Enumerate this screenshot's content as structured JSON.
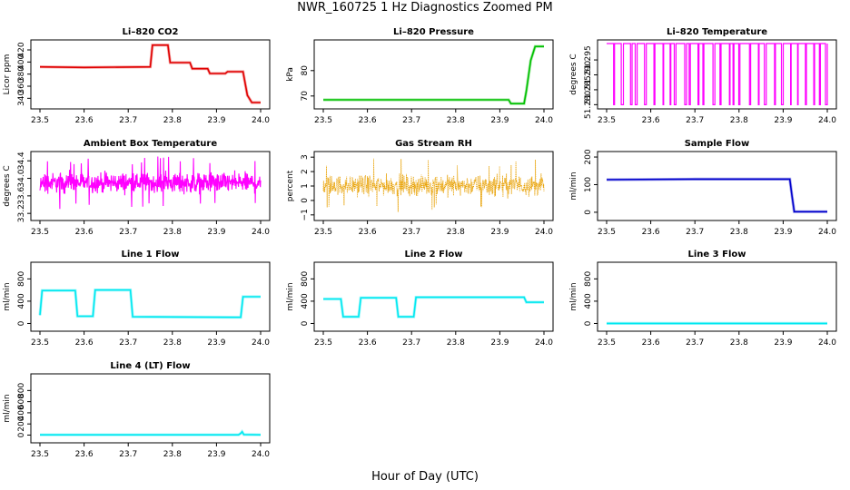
{
  "figure": {
    "title": "NWR_160725  1 Hz Diagnostics Zoomed PM",
    "xlabel": "Hour of Day (UTC)"
  },
  "chart_data": [
    {
      "type": "line",
      "title": "Li–820 CO2",
      "ylabel": "Licor ppm",
      "color": "#e00000",
      "xlim": [
        23.5,
        24.0
      ],
      "ylim": [
        327,
        432
      ],
      "xticks": [
        "23.5",
        "23.6",
        "23.7",
        "23.8",
        "23.9",
        "24.0"
      ],
      "yticks": [
        340,
        360,
        380,
        400,
        420
      ],
      "series": [
        {
          "x": [
            23.5,
            23.6,
            23.75,
            23.755,
            23.79,
            23.795,
            23.84,
            23.845,
            23.88,
            23.885,
            23.92,
            23.925,
            23.96,
            23.97,
            23.98,
            24.0
          ],
          "y": [
            392,
            391,
            392,
            428,
            428,
            399,
            399,
            389,
            389,
            381,
            381,
            384,
            384,
            345,
            333,
            333
          ]
        }
      ]
    },
    {
      "type": "line",
      "title": "Li–820 Pressure",
      "ylabel": "kPa",
      "color": "#00c000",
      "xlim": [
        23.5,
        24.0
      ],
      "ylim": [
        66,
        91
      ],
      "xticks": [
        "23.5",
        "23.6",
        "23.7",
        "23.8",
        "23.9",
        "24.0"
      ],
      "yticks": [
        70,
        80
      ],
      "series": [
        {
          "x": [
            23.5,
            23.92,
            23.925,
            23.955,
            23.96,
            23.97,
            23.98,
            24.0
          ],
          "y": [
            68.5,
            68.5,
            67.0,
            67.0,
            72,
            84,
            89.5,
            89.5
          ]
        }
      ]
    },
    {
      "type": "line",
      "title": "Li–820 Temperature",
      "ylabel": "degrees C",
      "color": "#ff00ff",
      "xlim": [
        23.5,
        24.0
      ],
      "ylim": [
        51.2795,
        51.3008
      ],
      "xticks": [
        "23.5",
        "23.6",
        "23.7",
        "23.8",
        "23.9",
        "24.0"
      ],
      "yticks": [
        "51.280",
        "51.285",
        "51.290",
        "51.295"
      ],
      "levels": [
        51.28,
        51.3005
      ]
    },
    {
      "type": "line",
      "title": "Ambient Box Temperature",
      "ylabel": "degrees C",
      "color": "#ff00ff",
      "xlim": [
        23.5,
        24.0
      ],
      "ylim": [
        33.1,
        34.55
      ],
      "xticks": [
        "23.5",
        "23.6",
        "23.7",
        "23.8",
        "23.9",
        "24.0"
      ],
      "yticks": [
        "33.2",
        "33.6",
        "34.0",
        "34.4"
      ],
      "mean": 33.9,
      "spread": [
        33.15,
        34.5
      ]
    },
    {
      "type": "scatter",
      "title": "Gas Stream RH",
      "ylabel": "percent",
      "color": "#e8a000",
      "xlim": [
        23.5,
        24.0
      ],
      "ylim": [
        -1.2,
        3.2
      ],
      "xticks": [
        "23.5",
        "23.6",
        "23.7",
        "23.8",
        "23.9",
        "24.0"
      ],
      "yticks": [
        "−1",
        "0",
        "1",
        "2",
        "3"
      ],
      "mean": 1.05,
      "spread": [
        -0.9,
        2.9
      ]
    },
    {
      "type": "line",
      "title": "Sample Flow",
      "ylabel": "ml/min",
      "color": "#0000cc",
      "xlim": [
        23.5,
        24.0
      ],
      "ylim": [
        -20,
        210
      ],
      "xticks": [
        "23.5",
        "23.6",
        "23.7",
        "23.8",
        "23.9",
        "24.0"
      ],
      "yticks": [
        0,
        100,
        200
      ],
      "series": [
        {
          "x": [
            23.5,
            23.7,
            23.8,
            23.915,
            23.92,
            23.925,
            24.0
          ],
          "y": [
            118,
            120,
            120,
            120,
            60,
            2,
            2
          ]
        }
      ]
    },
    {
      "type": "line",
      "title": "Line 1 Flow",
      "ylabel": "ml/min",
      "color": "#00e8f0",
      "xlim": [
        23.5,
        24.0
      ],
      "ylim": [
        -90,
        1050
      ],
      "xticks": [
        "23.5",
        "23.6",
        "23.7",
        "23.8",
        "23.9",
        "24.0"
      ],
      "yticks": [
        0,
        400,
        800
      ],
      "series": [
        {
          "x": [
            23.5,
            23.505,
            23.58,
            23.585,
            23.62,
            23.625,
            23.705,
            23.71,
            23.955,
            23.96,
            24.0
          ],
          "y": [
            150,
            590,
            590,
            130,
            130,
            600,
            600,
            120,
            110,
            480,
            480
          ]
        }
      ]
    },
    {
      "type": "line",
      "title": "Line 2 Flow",
      "ylabel": "ml/min",
      "color": "#00e8f0",
      "xlim": [
        23.5,
        24.0
      ],
      "ylim": [
        -90,
        1050
      ],
      "xticks": [
        "23.5",
        "23.6",
        "23.7",
        "23.8",
        "23.9",
        "24.0"
      ],
      "yticks": [
        0,
        400,
        800
      ],
      "series": [
        {
          "x": [
            23.5,
            23.54,
            23.545,
            23.58,
            23.585,
            23.665,
            23.67,
            23.705,
            23.71,
            23.955,
            23.96,
            24.0
          ],
          "y": [
            440,
            440,
            120,
            120,
            460,
            460,
            120,
            120,
            470,
            470,
            380,
            380
          ]
        }
      ]
    },
    {
      "type": "line",
      "title": "Line 3 Flow",
      "ylabel": "ml/min",
      "color": "#00e8f0",
      "xlim": [
        23.5,
        24.0
      ],
      "ylim": [
        -90,
        1050
      ],
      "xticks": [
        "23.5",
        "23.6",
        "23.7",
        "23.8",
        "23.9",
        "24.0"
      ],
      "yticks": [
        0,
        400,
        800
      ],
      "series": [
        {
          "x": [
            23.5,
            24.0
          ],
          "y": [
            2,
            2
          ]
        }
      ]
    },
    {
      "type": "line",
      "title": "Line 4 (LT) Flow",
      "ylabel": "ml/min",
      "color": "#00e8f0",
      "xlim": [
        23.5,
        24.0
      ],
      "ylim": [
        -90,
        1050
      ],
      "xticks": [
        "23.5",
        "23.6",
        "23.7",
        "23.8",
        "23.9",
        "24.0"
      ],
      "yticks": [
        0,
        200,
        400,
        600,
        800
      ],
      "series": [
        {
          "x": [
            23.5,
            23.95,
            23.955,
            23.958,
            23.962,
            24.0
          ],
          "y": [
            5,
            5,
            30,
            60,
            10,
            5
          ]
        }
      ]
    }
  ]
}
